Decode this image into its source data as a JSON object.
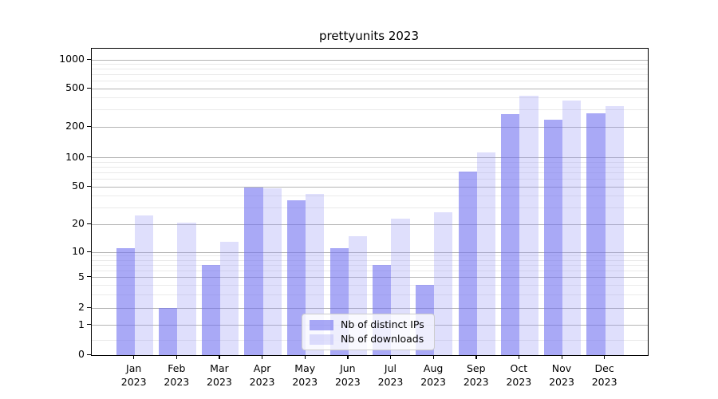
{
  "title": "prettyunits 2023",
  "chart_data": {
    "type": "bar",
    "title": "prettyunits 2023",
    "x_months": [
      "Jan",
      "Feb",
      "Mar",
      "Apr",
      "May",
      "Jun",
      "Jul",
      "Aug",
      "Sep",
      "Oct",
      "Nov",
      "Dec"
    ],
    "x_year": "2023",
    "series": [
      {
        "name": "Nb of distinct IPs",
        "values": [
          11,
          2,
          7,
          49,
          36,
          11,
          7,
          4,
          72,
          270,
          238,
          278
        ]
      },
      {
        "name": "Nb of downloads",
        "values": [
          25,
          21,
          13,
          48,
          42,
          15,
          23,
          27,
          113,
          425,
          376,
          328
        ]
      }
    ],
    "yscale": "asinh",
    "ylim": [
      0,
      1000
    ],
    "yticks": [
      0,
      1,
      2,
      5,
      10,
      20,
      50,
      100,
      200,
      500,
      1000
    ],
    "y_minor_ticks": [
      0.5,
      3,
      4,
      6,
      7,
      8,
      9,
      30,
      40,
      60,
      70,
      80,
      90,
      300,
      400,
      600,
      700,
      800,
      900
    ],
    "grid": true,
    "legend_position": "lower center"
  },
  "colors": {
    "bar_ips": "rgba(112,112,240,0.60)",
    "bar_downloads": "rgba(150,150,245,0.30)",
    "grid_major": "#b5b5b5",
    "grid_minor": "#eaeaea",
    "axis": "#000000",
    "background": "#ffffff"
  }
}
